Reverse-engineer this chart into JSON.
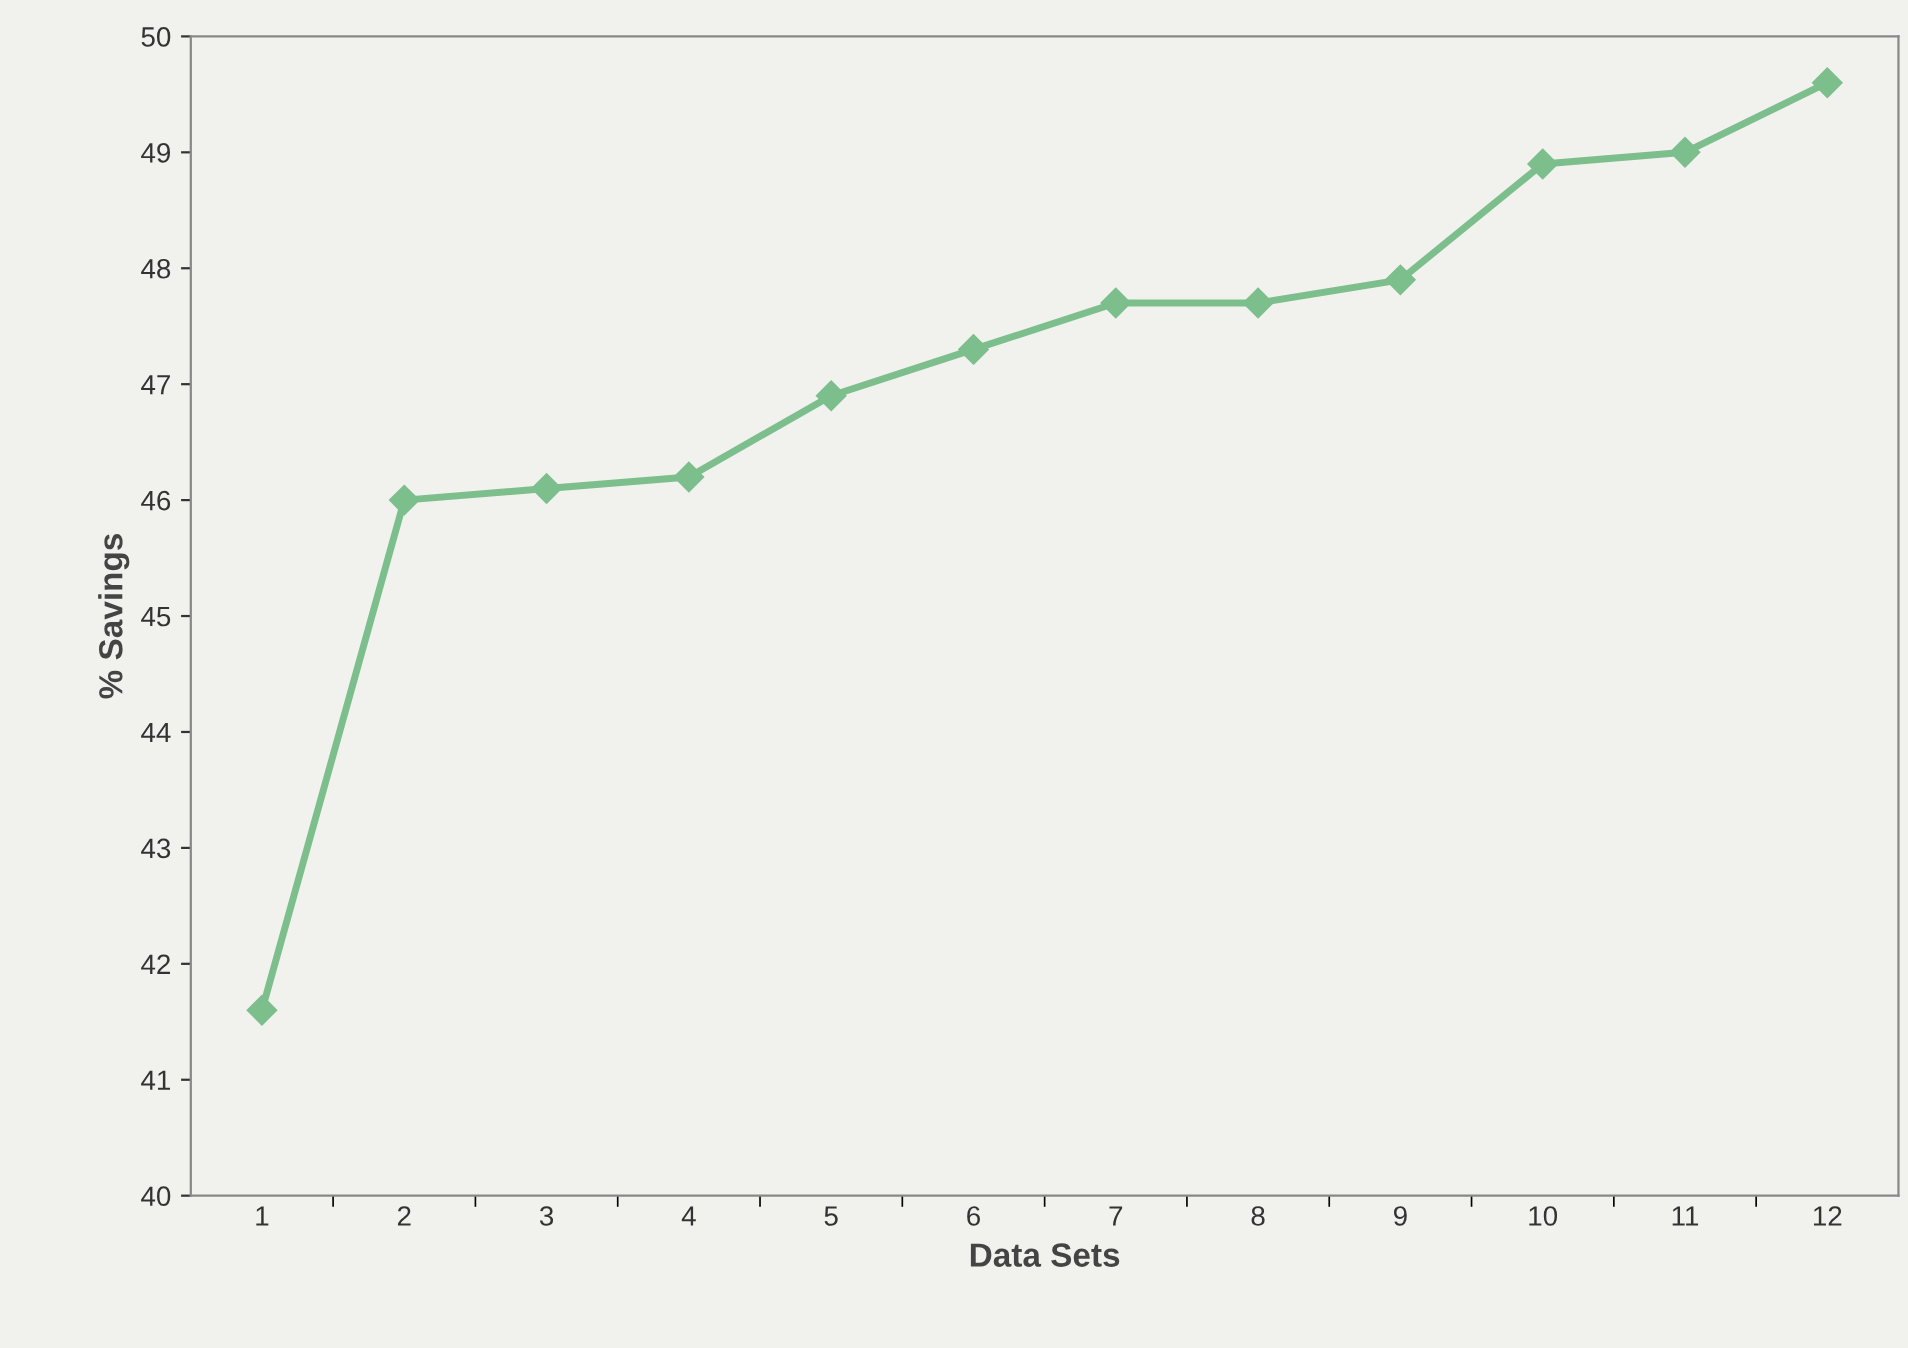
{
  "chart_data": {
    "type": "line",
    "xlabel": "Data Sets",
    "ylabel": "% Savings",
    "categories": [
      "1",
      "2",
      "3",
      "4",
      "5",
      "6",
      "7",
      "8",
      "9",
      "10",
      "11",
      "12"
    ],
    "series": [
      {
        "color": "#7cbf8c",
        "values": [
          41.6,
          46.0,
          46.1,
          46.2,
          46.9,
          47.3,
          47.7,
          47.7,
          47.9,
          48.9,
          49.0,
          49.6
        ]
      }
    ],
    "ylim": [
      40,
      50
    ],
    "yticks": [
      40,
      41,
      42,
      43,
      44,
      45,
      46,
      47,
      48,
      49,
      50
    ],
    "marker": "diamond",
    "line_style": "solid",
    "grid": false,
    "legend": false
  }
}
